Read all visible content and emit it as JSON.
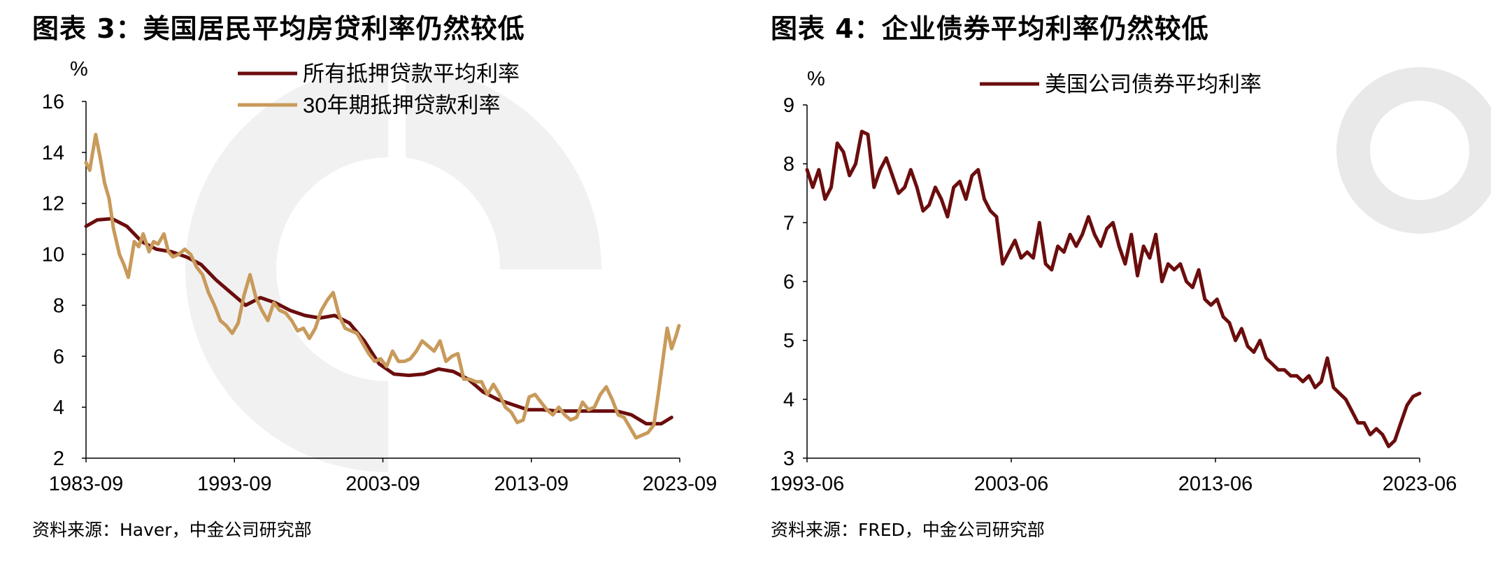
{
  "figures": [
    {
      "title": "图表 3：美国居民平均房贷利率仍然较低",
      "source": "资料来源：Haver，中金公司研究部",
      "chart_data": {
        "type": "line",
        "unit_label": "%",
        "x_ticks": [
          "1983-09",
          "1993-09",
          "2003-09",
          "2013-09",
          "2023-09"
        ],
        "x_range": [
          1983.75,
          2023.75
        ],
        "y_ticks": [
          2,
          4,
          6,
          8,
          10,
          12,
          14,
          16
        ],
        "ylim": [
          2,
          16
        ],
        "grid": false,
        "legend_position": "top-right",
        "series": [
          {
            "name": "所有抵押贷款平均利率",
            "color": "#6b0d0d",
            "x": [
              1983.75,
              1984.5,
              1985.5,
              1986.5,
              1987.5,
              1988.5,
              1989.5,
              1990.5,
              1991.5,
              1992.5,
              1993.5,
              1994.5,
              1995.5,
              1996.5,
              1997.5,
              1998.5,
              1999.5,
              2000.5,
              2001.5,
              2002.5,
              2003.5,
              2004.5,
              2005.5,
              2006.5,
              2007.5,
              2008.5,
              2009.5,
              2010.5,
              2011.5,
              2012.5,
              2013.5,
              2014.5,
              2015.5,
              2016.5,
              2017.5,
              2018.5,
              2019.5,
              2020.5,
              2021.5,
              2022.5,
              2023.2
            ],
            "y": [
              11.1,
              11.35,
              11.4,
              11.1,
              10.5,
              10.2,
              10.1,
              9.9,
              9.6,
              9.0,
              8.5,
              8.0,
              8.3,
              8.1,
              7.8,
              7.6,
              7.5,
              7.6,
              7.3,
              6.6,
              5.7,
              5.3,
              5.25,
              5.3,
              5.5,
              5.4,
              5.1,
              4.6,
              4.3,
              4.1,
              3.9,
              3.9,
              3.85,
              3.85,
              3.85,
              3.85,
              3.85,
              3.7,
              3.35,
              3.35,
              3.6
            ]
          },
          {
            "name": "30年期抵押贷款利率",
            "color": "#c89a5b",
            "x": [
              1983.75,
              1984.0,
              1984.4,
              1984.7,
              1985.0,
              1985.3,
              1985.6,
              1986.0,
              1986.3,
              1986.6,
              1987.0,
              1987.3,
              1987.6,
              1988.0,
              1988.3,
              1988.6,
              1989.0,
              1989.3,
              1989.6,
              1990.0,
              1990.4,
              1990.8,
              1991.2,
              1991.6,
              1992.0,
              1992.4,
              1992.8,
              1993.2,
              1993.6,
              1994.0,
              1994.4,
              1994.8,
              1995.2,
              1995.6,
              1996.0,
              1996.4,
              1996.8,
              1997.2,
              1997.6,
              1998.0,
              1998.4,
              1998.8,
              1999.2,
              1999.6,
              2000.0,
              2000.4,
              2000.8,
              2001.2,
              2001.6,
              2002.0,
              2002.4,
              2002.8,
              2003.2,
              2003.6,
              2004.0,
              2004.4,
              2004.8,
              2005.2,
              2005.6,
              2006.0,
              2006.4,
              2006.8,
              2007.2,
              2007.6,
              2008.0,
              2008.4,
              2008.8,
              2009.2,
              2009.6,
              2010.0,
              2010.4,
              2010.8,
              2011.2,
              2011.6,
              2012.0,
              2012.4,
              2012.8,
              2013.2,
              2013.6,
              2014.0,
              2014.4,
              2014.8,
              2015.2,
              2015.6,
              2016.0,
              2016.4,
              2016.8,
              2017.2,
              2017.6,
              2018.0,
              2018.4,
              2018.8,
              2019.2,
              2019.6,
              2020.0,
              2020.4,
              2020.8,
              2021.2,
              2021.6,
              2022.0,
              2022.3,
              2022.6,
              2022.9,
              2023.2,
              2023.5,
              2023.7
            ],
            "y": [
              13.6,
              13.3,
              14.7,
              13.8,
              12.8,
              12.2,
              11.0,
              10.0,
              9.6,
              9.1,
              10.5,
              10.3,
              10.8,
              10.1,
              10.5,
              10.4,
              10.8,
              10.1,
              9.9,
              10.0,
              10.2,
              10.0,
              9.5,
              9.2,
              8.5,
              8.0,
              7.4,
              7.2,
              6.9,
              7.3,
              8.4,
              9.2,
              8.3,
              7.8,
              7.4,
              8.1,
              7.8,
              7.7,
              7.4,
              7.0,
              7.1,
              6.7,
              7.1,
              7.8,
              8.2,
              8.5,
              7.6,
              7.1,
              7.0,
              6.9,
              6.5,
              6.1,
              5.8,
              5.9,
              5.6,
              6.2,
              5.8,
              5.8,
              5.9,
              6.2,
              6.6,
              6.4,
              6.2,
              6.6,
              5.8,
              6.0,
              6.1,
              5.1,
              5.1,
              5.0,
              5.0,
              4.5,
              4.9,
              4.5,
              4.0,
              3.8,
              3.4,
              3.5,
              4.4,
              4.5,
              4.2,
              3.9,
              3.7,
              4.0,
              3.7,
              3.5,
              3.6,
              4.2,
              3.9,
              4.0,
              4.5,
              4.8,
              4.3,
              3.7,
              3.6,
              3.2,
              2.8,
              2.9,
              3.0,
              3.3,
              4.5,
              5.8,
              7.1,
              6.3,
              6.8,
              7.2
            ]
          }
        ]
      }
    },
    {
      "title": "图表 4：企业债券平均利率仍然较低",
      "source": "资料来源：FRED，中金公司研究部",
      "chart_data": {
        "type": "line",
        "unit_label": "%",
        "x_ticks": [
          "1993-06",
          "2003-06",
          "2013-06",
          "2023-06"
        ],
        "x_range": [
          1993.42,
          2023.42
        ],
        "y_ticks": [
          3,
          4,
          5,
          6,
          7,
          8,
          9
        ],
        "ylim": [
          3,
          9
        ],
        "grid": false,
        "legend_position": "top-center",
        "series": [
          {
            "name": "美国公司债券平均利率",
            "color": "#6b0d0d",
            "x": [
              1993.42,
              1993.7,
              1994.0,
              1994.3,
              1994.6,
              1994.9,
              1995.2,
              1995.5,
              1995.8,
              1996.1,
              1996.4,
              1996.7,
              1997.0,
              1997.3,
              1997.6,
              1997.9,
              1998.2,
              1998.5,
              1998.8,
              1999.1,
              1999.4,
              1999.7,
              2000.0,
              2000.3,
              2000.6,
              2000.9,
              2001.2,
              2001.5,
              2001.8,
              2002.1,
              2002.4,
              2002.7,
              2003.0,
              2003.3,
              2003.6,
              2003.9,
              2004.2,
              2004.5,
              2004.8,
              2005.1,
              2005.4,
              2005.7,
              2006.0,
              2006.3,
              2006.6,
              2006.9,
              2007.2,
              2007.5,
              2007.8,
              2008.1,
              2008.4,
              2008.7,
              2009.0,
              2009.3,
              2009.6,
              2009.9,
              2010.2,
              2010.5,
              2010.8,
              2011.1,
              2011.4,
              2011.7,
              2012.0,
              2012.3,
              2012.6,
              2012.9,
              2013.2,
              2013.5,
              2013.8,
              2014.1,
              2014.4,
              2014.7,
              2015.0,
              2015.3,
              2015.6,
              2015.9,
              2016.2,
              2016.5,
              2016.8,
              2017.1,
              2017.4,
              2017.7,
              2018.0,
              2018.3,
              2018.6,
              2018.9,
              2019.2,
              2019.5,
              2019.8,
              2020.1,
              2020.4,
              2020.7,
              2021.0,
              2021.3,
              2021.6,
              2021.9,
              2022.2,
              2022.5,
              2022.8,
              2023.1,
              2023.42
            ],
            "y": [
              7.9,
              7.6,
              7.9,
              7.4,
              7.6,
              8.35,
              8.2,
              7.8,
              8.0,
              8.55,
              8.5,
              7.6,
              7.9,
              8.1,
              7.8,
              7.5,
              7.6,
              7.9,
              7.6,
              7.2,
              7.3,
              7.6,
              7.4,
              7.1,
              7.6,
              7.7,
              7.4,
              7.8,
              7.9,
              7.4,
              7.2,
              7.1,
              6.3,
              6.5,
              6.7,
              6.4,
              6.5,
              6.4,
              7.0,
              6.3,
              6.2,
              6.6,
              6.5,
              6.8,
              6.6,
              6.8,
              7.1,
              6.8,
              6.6,
              6.9,
              7.0,
              6.6,
              6.3,
              6.8,
              6.1,
              6.6,
              6.4,
              6.8,
              6.0,
              6.3,
              6.2,
              6.3,
              6.0,
              5.9,
              6.2,
              5.7,
              5.6,
              5.7,
              5.4,
              5.3,
              5.0,
              5.2,
              4.9,
              4.8,
              5.0,
              4.7,
              4.6,
              4.5,
              4.5,
              4.4,
              4.4,
              4.3,
              4.4,
              4.2,
              4.3,
              4.7,
              4.2,
              4.1,
              4.0,
              3.8,
              3.6,
              3.6,
              3.4,
              3.5,
              3.4,
              3.2,
              3.3,
              3.6,
              3.9,
              4.05,
              4.1
            ]
          }
        ]
      }
    }
  ]
}
